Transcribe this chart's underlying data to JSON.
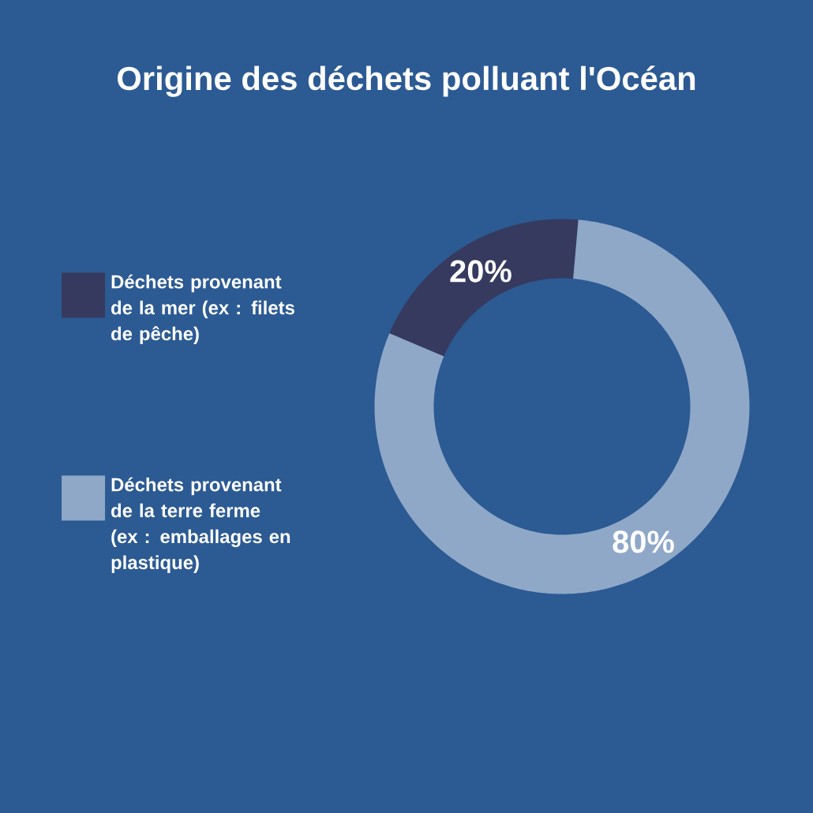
{
  "chart_data": {
    "type": "donut",
    "title": "Origine des déchets polluant l'Océan",
    "categories": [
      "Déchets provenant de la mer (ex : filets de pêche)",
      "Déchets provenant de la terre ferme (ex : emballages en plastique)"
    ],
    "values": [
      20,
      80
    ],
    "colors": [
      "#363a5f",
      "#8fa8c8"
    ],
    "value_labels": [
      "20%",
      "80%"
    ],
    "legend": "left"
  }
}
